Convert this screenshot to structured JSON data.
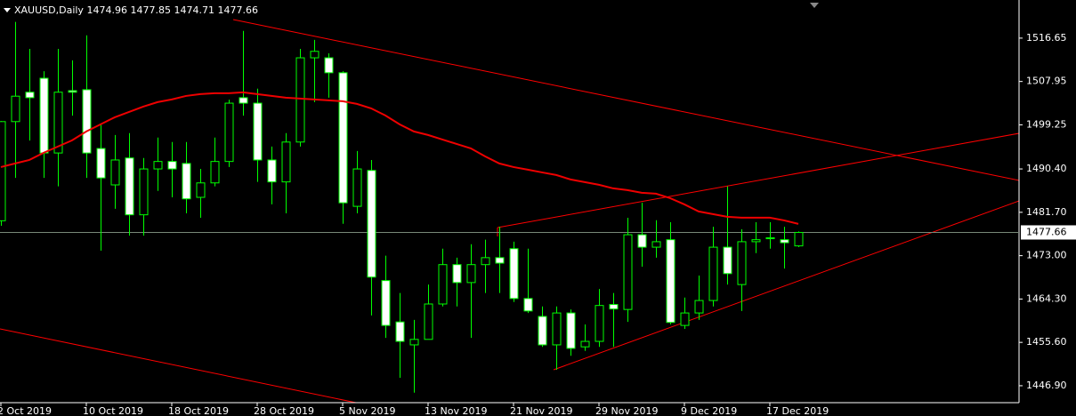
{
  "chart_data": {
    "type": "candlestick",
    "symbol": "XAUUSD,Daily",
    "categories": [
      "2 Oct 2019",
      null,
      null,
      null,
      null,
      null,
      "10 Oct 2019",
      null,
      null,
      null,
      null,
      null,
      "18 Oct 2019",
      null,
      null,
      null,
      null,
      null,
      "28 Oct 2019",
      null,
      null,
      null,
      null,
      null,
      "5 Nov 2019",
      null,
      null,
      null,
      null,
      null,
      "13 Nov 2019",
      null,
      null,
      null,
      null,
      null,
      "21 Nov 2019",
      null,
      null,
      null,
      null,
      null,
      "29 Nov 2019",
      null,
      null,
      null,
      null,
      null,
      "9 Dec 2019",
      null,
      null,
      null,
      null,
      null,
      "17 Dec 2019",
      null,
      null
    ],
    "open": [
      1480.0,
      1499.9,
      1505.8,
      1508.6,
      1493.6,
      1506.1,
      1506.3,
      1494.5,
      1487.2,
      1492.6,
      1481.2,
      1490.4,
      1491.9,
      1491.5,
      1484.7,
      1487.6,
      1491.9,
      1504.7,
      1503.6,
      1492.2,
      1487.8,
      1495.8,
      1512.7,
      1512.7,
      1509.7,
      1482.9,
      1490.1,
      1468.0,
      1459.7,
      1455.1,
      1456.2,
      1463.3,
      1471.2,
      1467.6,
      1471.2,
      1472.6,
      1474.4,
      1464.4,
      1460.8,
      1455.1,
      1461.5,
      1454.7,
      1455.8,
      1463.2,
      1462.2,
      1477.2,
      1474.7,
      1476.2,
      1459.0,
      1461.5,
      1464.0,
      1474.7,
      1467.2,
      1475.8,
      1476.4,
      1476.2,
      1474.96
    ],
    "high": [
      1500.0,
      1519.9,
      1514.5,
      1510.0,
      1514.5,
      1512.2,
      1517.2,
      1499.3,
      1497.2,
      1497.6,
      1492.6,
      1496.7,
      1495.8,
      1495.8,
      1490.4,
      1496.7,
      1504.3,
      1518.1,
      1506.5,
      1494.9,
      1497.6,
      1514.5,
      1516.3,
      1513.6,
      1510.0,
      1494.0,
      1492.2,
      1473.0,
      1465.5,
      1460.1,
      1467.2,
      1474.4,
      1472.6,
      1475.3,
      1476.2,
      1478.8,
      1475.8,
      1474.4,
      1462.8,
      1462.8,
      1462.2,
      1459.2,
      1466.3,
      1465.5,
      1480.6,
      1483.6,
      1480.1,
      1479.7,
      1464.6,
      1469.0,
      1478.8,
      1486.9,
      1478.3,
      1479.7,
      1479.7,
      1478.8,
      1477.85
    ],
    "low": [
      1479.0,
      1488.6,
      1496.1,
      1488.6,
      1486.9,
      1501.1,
      1488.6,
      1474.0,
      1482.4,
      1477.0,
      1477.0,
      1486.0,
      1484.7,
      1481.5,
      1480.6,
      1486.9,
      1490.8,
      1501.1,
      1487.8,
      1483.3,
      1481.5,
      1494.9,
      1503.8,
      1504.7,
      1479.4,
      1481.5,
      1461.0,
      1456.5,
      1448.5,
      1445.5,
      1456.2,
      1462.8,
      1462.8,
      1456.5,
      1465.5,
      1465.5,
      1463.7,
      1461.5,
      1454.7,
      1450.1,
      1452.9,
      1453.9,
      1454.7,
      1454.7,
      1459.7,
      1470.8,
      1472.6,
      1459.2,
      1458.3,
      1460.1,
      1462.8,
      1467.2,
      1461.9,
      1473.5,
      1474.4,
      1470.4,
      1474.71
    ],
    "close": [
      1499.9,
      1505.0,
      1504.7,
      1493.6,
      1505.8,
      1505.8,
      1493.6,
      1488.6,
      1492.2,
      1481.2,
      1490.4,
      1491.9,
      1490.4,
      1484.4,
      1487.6,
      1491.9,
      1503.6,
      1503.6,
      1492.2,
      1487.8,
      1495.8,
      1512.7,
      1514.0,
      1509.7,
      1483.6,
      1490.4,
      1468.7,
      1459.0,
      1455.8,
      1456.2,
      1463.3,
      1471.2,
      1467.6,
      1471.2,
      1472.6,
      1471.5,
      1464.4,
      1461.9,
      1455.1,
      1461.5,
      1454.4,
      1455.8,
      1463.0,
      1462.3,
      1477.2,
      1474.7,
      1475.8,
      1459.6,
      1461.5,
      1464.0,
      1474.7,
      1469.4,
      1475.8,
      1476.2,
      1476.6,
      1475.6,
      1477.66
    ],
    "ma": {
      "color": "#ee0000",
      "values": [
        1490.78,
        1491.5,
        1492.21,
        1493.64,
        1494.89,
        1496.14,
        1497.92,
        1499.35,
        1500.77,
        1501.84,
        1502.91,
        1503.81,
        1504.34,
        1505.05,
        1505.41,
        1505.59,
        1505.59,
        1505.77,
        1505.41,
        1505.05,
        1504.7,
        1504.52,
        1504.34,
        1504.16,
        1503.98,
        1503.45,
        1502.56,
        1501.13,
        1499.35,
        1497.92,
        1497.21,
        1496.31,
        1495.42,
        1494.53,
        1492.93,
        1491.5,
        1490.78,
        1490.25,
        1489.71,
        1489.18,
        1488.29,
        1487.75,
        1487.22,
        1486.5,
        1486.15,
        1485.61,
        1485.43,
        1484.54,
        1483.29,
        1481.87,
        1481.33,
        1480.8,
        1480.62,
        1480.62,
        1480.62,
        1480.08,
        1479.37
      ]
    },
    "bull_color": "#000000",
    "bear_color": "#ffffff",
    "outline_color": "#00ff00",
    "ylim": [
      1443.5,
      1524.3
    ],
    "yticks": [
      1516.65,
      1507.95,
      1499.25,
      {
        "value": 1490.4,
        "label": "1490.40"
      },
      {
        "value": 1481.7,
        "label": "1481.70"
      },
      {
        "value": 1473.0,
        "label": "1473.00"
      },
      {
        "value": 1464.3,
        "label": "1464.30"
      },
      {
        "value": 1455.6,
        "label": "1455.60"
      },
      {
        "value": 1446.9,
        "label": "1446.90"
      }
    ]
  }
}
